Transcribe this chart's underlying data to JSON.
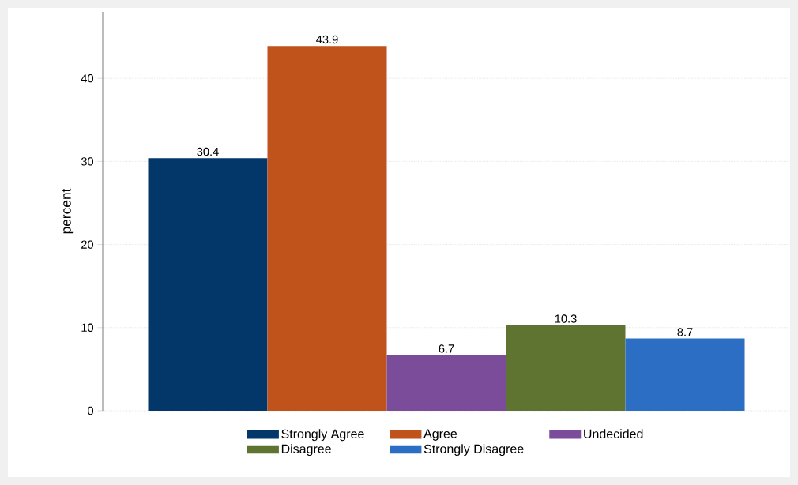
{
  "chart_data": {
    "type": "bar",
    "ylabel": "percent",
    "categories": [
      null
    ],
    "series": [
      {
        "name": "Strongly Agree",
        "color": "#03376a",
        "values": [
          30.4
        ]
      },
      {
        "name": "Agree",
        "color": "#bf531b",
        "values": [
          43.9
        ]
      },
      {
        "name": "Undecided",
        "color": "#7a4c99",
        "values": [
          6.7
        ]
      },
      {
        "name": "Disagree",
        "color": "#5f7430",
        "values": [
          10.3
        ]
      },
      {
        "name": "Strongly Disagree",
        "color": "#2c6ec3",
        "values": [
          8.7
        ]
      }
    ],
    "ylim": [
      0,
      48
    ],
    "yticks": [
      0,
      10,
      20,
      30,
      40
    ],
    "grid": "y",
    "legend": "bottom",
    "data_labels": true
  }
}
